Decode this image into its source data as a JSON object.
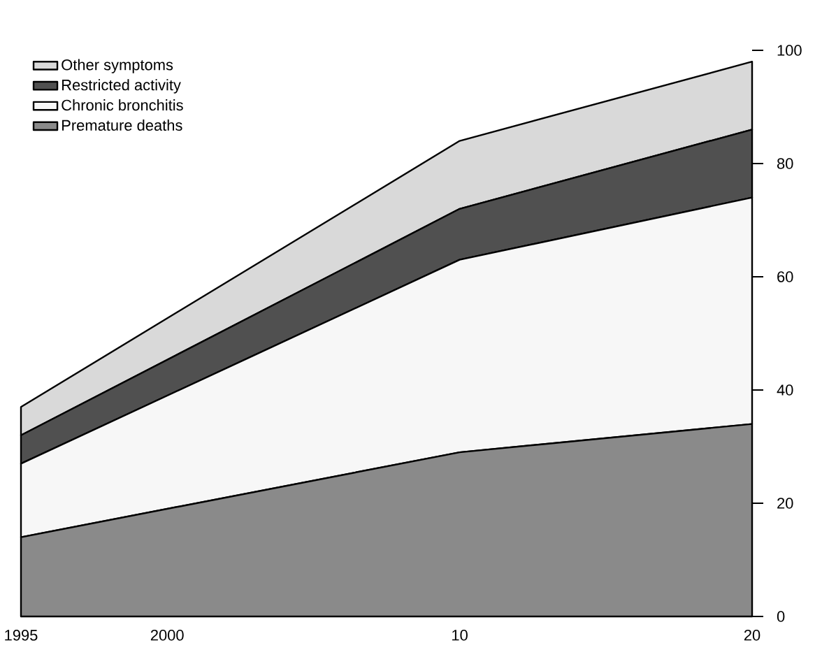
{
  "chart_data": {
    "type": "area",
    "stacked": true,
    "legend": "top left",
    "x": [
      1995,
      2010,
      2020
    ],
    "xlim": [
      1995,
      2020
    ],
    "xticks": [
      1995,
      2000,
      {
        "value": 2010,
        "label": "10"
      },
      {
        "value": 2020,
        "label": "20"
      }
    ],
    "ylim": [
      0,
      100
    ],
    "yticks": [
      0,
      20,
      40,
      60,
      80,
      100
    ],
    "series": [
      {
        "name": "Premature deaths",
        "color": "#8a8a8a",
        "values": [
          14,
          29,
          34
        ]
      },
      {
        "name": "Chronic bronchitis",
        "color": "#f7f7f7",
        "values": [
          13,
          34,
          40
        ]
      },
      {
        "name": "Restricted activity",
        "color": "#505050",
        "values": [
          5,
          9,
          12
        ]
      },
      {
        "name": "Other symptoms",
        "color": "#d9d9d9",
        "values": [
          5,
          12,
          12
        ]
      }
    ]
  }
}
